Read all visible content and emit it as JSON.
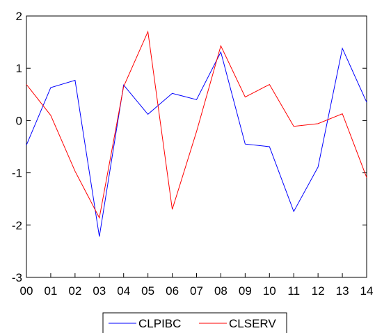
{
  "chart_data": {
    "type": "line",
    "title": "",
    "xlabel": "",
    "ylabel": "",
    "categories": [
      "00",
      "01",
      "02",
      "03",
      "04",
      "05",
      "06",
      "07",
      "08",
      "09",
      "10",
      "11",
      "12",
      "13",
      "14"
    ],
    "yticks": [
      -3,
      -2,
      -1,
      0,
      1,
      2
    ],
    "ylim": [
      -3,
      2
    ],
    "grid": false,
    "legend_position": "bottom",
    "series": [
      {
        "name": "CLPIBC",
        "color": "#0000ff",
        "values": [
          -0.47,
          0.63,
          0.77,
          -2.22,
          0.68,
          0.12,
          0.52,
          0.4,
          1.31,
          -0.45,
          -0.5,
          -1.74,
          -0.89,
          1.38,
          0.35
        ]
      },
      {
        "name": "CLSERV",
        "color": "#ff0000",
        "values": [
          0.69,
          0.1,
          -0.97,
          -1.86,
          0.65,
          1.7,
          -1.7,
          -0.21,
          1.43,
          0.45,
          0.69,
          -0.11,
          -0.06,
          0.13,
          -1.09
        ]
      }
    ]
  }
}
